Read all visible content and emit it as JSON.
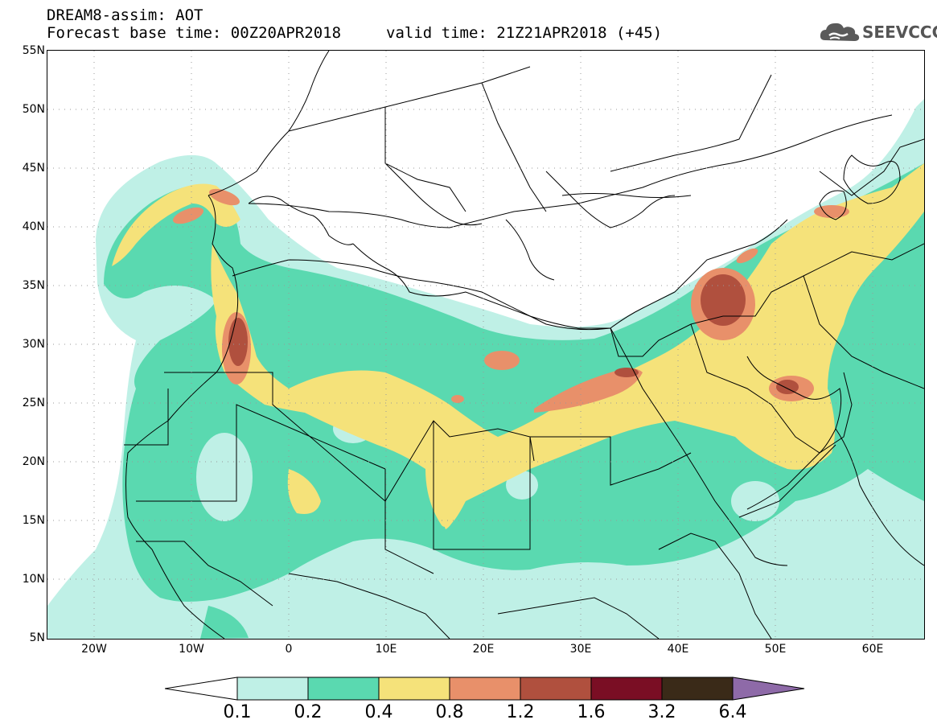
{
  "header": {
    "title_line1": "DREAM8-assim: AOT",
    "title_line2": "Forecast base time: 00Z20APR2018",
    "valid_time": "valid time: 21Z21APR2018 (+45)",
    "logo_text": "SEEVCCC",
    "logo_icon": "cloud-icon"
  },
  "map": {
    "lat_labels": [
      "55N",
      "50N",
      "45N",
      "40N",
      "35N",
      "30N",
      "25N",
      "20N",
      "15N",
      "10N",
      "5N"
    ],
    "lon_labels": [
      "20W",
      "10W",
      "0",
      "10E",
      "20E",
      "30E",
      "40E",
      "50E",
      "60E"
    ],
    "lat_range": [
      5,
      55
    ],
    "lon_range": [
      -25,
      65
    ],
    "grid": "dotted",
    "variable": "Aerosol Optical Thickness"
  },
  "colorbar": {
    "labels": [
      "0.1",
      "0.2",
      "0.4",
      "0.8",
      "1.2",
      "1.6",
      "3.2",
      "6.4"
    ],
    "colors": [
      "#ffffff",
      "#bff0e6",
      "#5ad9b0",
      "#f5e27a",
      "#e8906a",
      "#b0503e",
      "#7a0e24",
      "#3a2a18",
      "#8e6aa8"
    ]
  }
}
